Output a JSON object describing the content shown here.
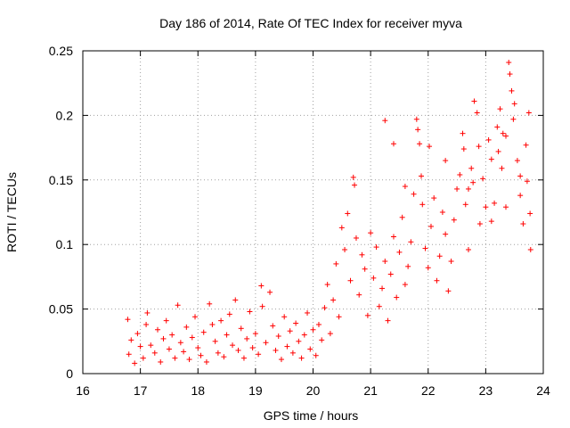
{
  "chart_data": {
    "type": "scatter",
    "title": "Day 186 of 2014, Rate Of TEC Index for receiver myva",
    "xlabel": "GPS time / hours",
    "ylabel": "ROTI / TECUs",
    "xlim": [
      16,
      24
    ],
    "ylim": [
      0,
      0.25
    ],
    "x_ticks": [
      16,
      17,
      18,
      19,
      20,
      21,
      22,
      23,
      24
    ],
    "x_tick_labels": [
      "16",
      "17",
      "18",
      "19",
      "20",
      "21",
      "22",
      "23",
      "24"
    ],
    "y_ticks": [
      0,
      0.05,
      0.1,
      0.15,
      0.2,
      0.25
    ],
    "y_tick_labels": [
      "0",
      "0.05",
      "0.1",
      "0.15",
      "0.2",
      "0.25"
    ],
    "grid": true,
    "marker": "+",
    "color": "#ff0000",
    "series": [
      {
        "name": "ROTI",
        "points": [
          [
            16.78,
            0.042
          ],
          [
            16.8,
            0.015
          ],
          [
            16.84,
            0.026
          ],
          [
            16.9,
            0.008
          ],
          [
            16.95,
            0.031
          ],
          [
            17.0,
            0.021
          ],
          [
            17.05,
            0.012
          ],
          [
            17.1,
            0.038
          ],
          [
            17.12,
            0.047
          ],
          [
            17.18,
            0.022
          ],
          [
            17.25,
            0.016
          ],
          [
            17.3,
            0.034
          ],
          [
            17.35,
            0.009
          ],
          [
            17.4,
            0.027
          ],
          [
            17.45,
            0.041
          ],
          [
            17.5,
            0.019
          ],
          [
            17.55,
            0.03
          ],
          [
            17.6,
            0.012
          ],
          [
            17.65,
            0.053
          ],
          [
            17.7,
            0.024
          ],
          [
            17.75,
            0.017
          ],
          [
            17.8,
            0.036
          ],
          [
            17.85,
            0.011
          ],
          [
            17.9,
            0.028
          ],
          [
            17.95,
            0.044
          ],
          [
            18.0,
            0.02
          ],
          [
            18.05,
            0.014
          ],
          [
            18.1,
            0.032
          ],
          [
            18.15,
            0.009
          ],
          [
            18.2,
            0.054
          ],
          [
            18.25,
            0.038
          ],
          [
            18.3,
            0.025
          ],
          [
            18.35,
            0.016
          ],
          [
            18.4,
            0.041
          ],
          [
            18.45,
            0.013
          ],
          [
            18.5,
            0.03
          ],
          [
            18.55,
            0.046
          ],
          [
            18.6,
            0.022
          ],
          [
            18.65,
            0.057
          ],
          [
            18.7,
            0.018
          ],
          [
            18.75,
            0.035
          ],
          [
            18.8,
            0.012
          ],
          [
            18.85,
            0.027
          ],
          [
            18.9,
            0.048
          ],
          [
            18.95,
            0.02
          ],
          [
            19.0,
            0.031
          ],
          [
            19.05,
            0.015
          ],
          [
            19.1,
            0.068
          ],
          [
            19.12,
            0.052
          ],
          [
            19.18,
            0.024
          ],
          [
            19.25,
            0.063
          ],
          [
            19.3,
            0.037
          ],
          [
            19.35,
            0.018
          ],
          [
            19.4,
            0.029
          ],
          [
            19.45,
            0.011
          ],
          [
            19.5,
            0.044
          ],
          [
            19.55,
            0.021
          ],
          [
            19.6,
            0.033
          ],
          [
            19.65,
            0.016
          ],
          [
            19.7,
            0.039
          ],
          [
            19.75,
            0.025
          ],
          [
            19.8,
            0.012
          ],
          [
            19.85,
            0.03
          ],
          [
            19.9,
            0.047
          ],
          [
            19.95,
            0.019
          ],
          [
            20.0,
            0.034
          ],
          [
            20.05,
            0.014
          ],
          [
            20.1,
            0.038
          ],
          [
            20.15,
            0.026
          ],
          [
            20.2,
            0.051
          ],
          [
            20.25,
            0.069
          ],
          [
            20.3,
            0.031
          ],
          [
            20.35,
            0.057
          ],
          [
            20.4,
            0.085
          ],
          [
            20.45,
            0.044
          ],
          [
            20.5,
            0.113
          ],
          [
            20.55,
            0.096
          ],
          [
            20.6,
            0.124
          ],
          [
            20.65,
            0.072
          ],
          [
            20.7,
            0.152
          ],
          [
            20.72,
            0.146
          ],
          [
            20.75,
            0.105
          ],
          [
            20.8,
            0.061
          ],
          [
            20.85,
            0.092
          ],
          [
            20.9,
            0.081
          ],
          [
            20.95,
            0.045
          ],
          [
            21.0,
            0.109
          ],
          [
            21.05,
            0.074
          ],
          [
            21.1,
            0.098
          ],
          [
            21.15,
            0.052
          ],
          [
            21.2,
            0.066
          ],
          [
            21.25,
            0.087
          ],
          [
            21.3,
            0.041
          ],
          [
            21.35,
            0.077
          ],
          [
            21.4,
            0.106
          ],
          [
            21.45,
            0.059
          ],
          [
            21.5,
            0.094
          ],
          [
            21.55,
            0.121
          ],
          [
            21.6,
            0.069
          ],
          [
            21.65,
            0.083
          ],
          [
            21.7,
            0.102
          ],
          [
            21.75,
            0.139
          ],
          [
            21.8,
            0.197
          ],
          [
            21.82,
            0.189
          ],
          [
            21.85,
            0.178
          ],
          [
            21.88,
            0.153
          ],
          [
            21.9,
            0.131
          ],
          [
            21.95,
            0.097
          ],
          [
            22.0,
            0.082
          ],
          [
            22.05,
            0.114
          ],
          [
            22.1,
            0.136
          ],
          [
            22.15,
            0.072
          ],
          [
            22.2,
            0.091
          ],
          [
            22.25,
            0.125
          ],
          [
            22.3,
            0.108
          ],
          [
            22.35,
            0.064
          ],
          [
            22.4,
            0.087
          ],
          [
            22.45,
            0.119
          ],
          [
            22.5,
            0.143
          ],
          [
            22.55,
            0.154
          ],
          [
            22.6,
            0.186
          ],
          [
            22.62,
            0.174
          ],
          [
            22.65,
            0.131
          ],
          [
            22.7,
            0.096
          ],
          [
            22.75,
            0.159
          ],
          [
            22.78,
            0.148
          ],
          [
            22.8,
            0.211
          ],
          [
            22.85,
            0.202
          ],
          [
            22.88,
            0.176
          ],
          [
            22.9,
            0.116
          ],
          [
            22.95,
            0.151
          ],
          [
            23.0,
            0.129
          ],
          [
            23.05,
            0.181
          ],
          [
            23.1,
            0.166
          ],
          [
            23.15,
            0.132
          ],
          [
            23.2,
            0.191
          ],
          [
            23.22,
            0.172
          ],
          [
            23.25,
            0.205
          ],
          [
            23.28,
            0.159
          ],
          [
            23.3,
            0.186
          ],
          [
            23.35,
            0.129
          ],
          [
            23.4,
            0.241
          ],
          [
            23.42,
            0.232
          ],
          [
            23.45,
            0.219
          ],
          [
            23.48,
            0.197
          ],
          [
            23.5,
            0.209
          ],
          [
            23.55,
            0.165
          ],
          [
            23.6,
            0.138
          ],
          [
            23.65,
            0.116
          ],
          [
            23.7,
            0.177
          ],
          [
            23.72,
            0.149
          ],
          [
            23.75,
            0.202
          ],
          [
            23.77,
            0.124
          ],
          [
            23.78,
            0.096
          ],
          [
            21.25,
            0.196
          ],
          [
            21.4,
            0.178
          ],
          [
            21.6,
            0.145
          ],
          [
            22.02,
            0.176
          ],
          [
            22.3,
            0.165
          ],
          [
            22.7,
            0.143
          ],
          [
            23.1,
            0.118
          ],
          [
            23.35,
            0.184
          ],
          [
            23.6,
            0.153
          ]
        ]
      }
    ]
  }
}
